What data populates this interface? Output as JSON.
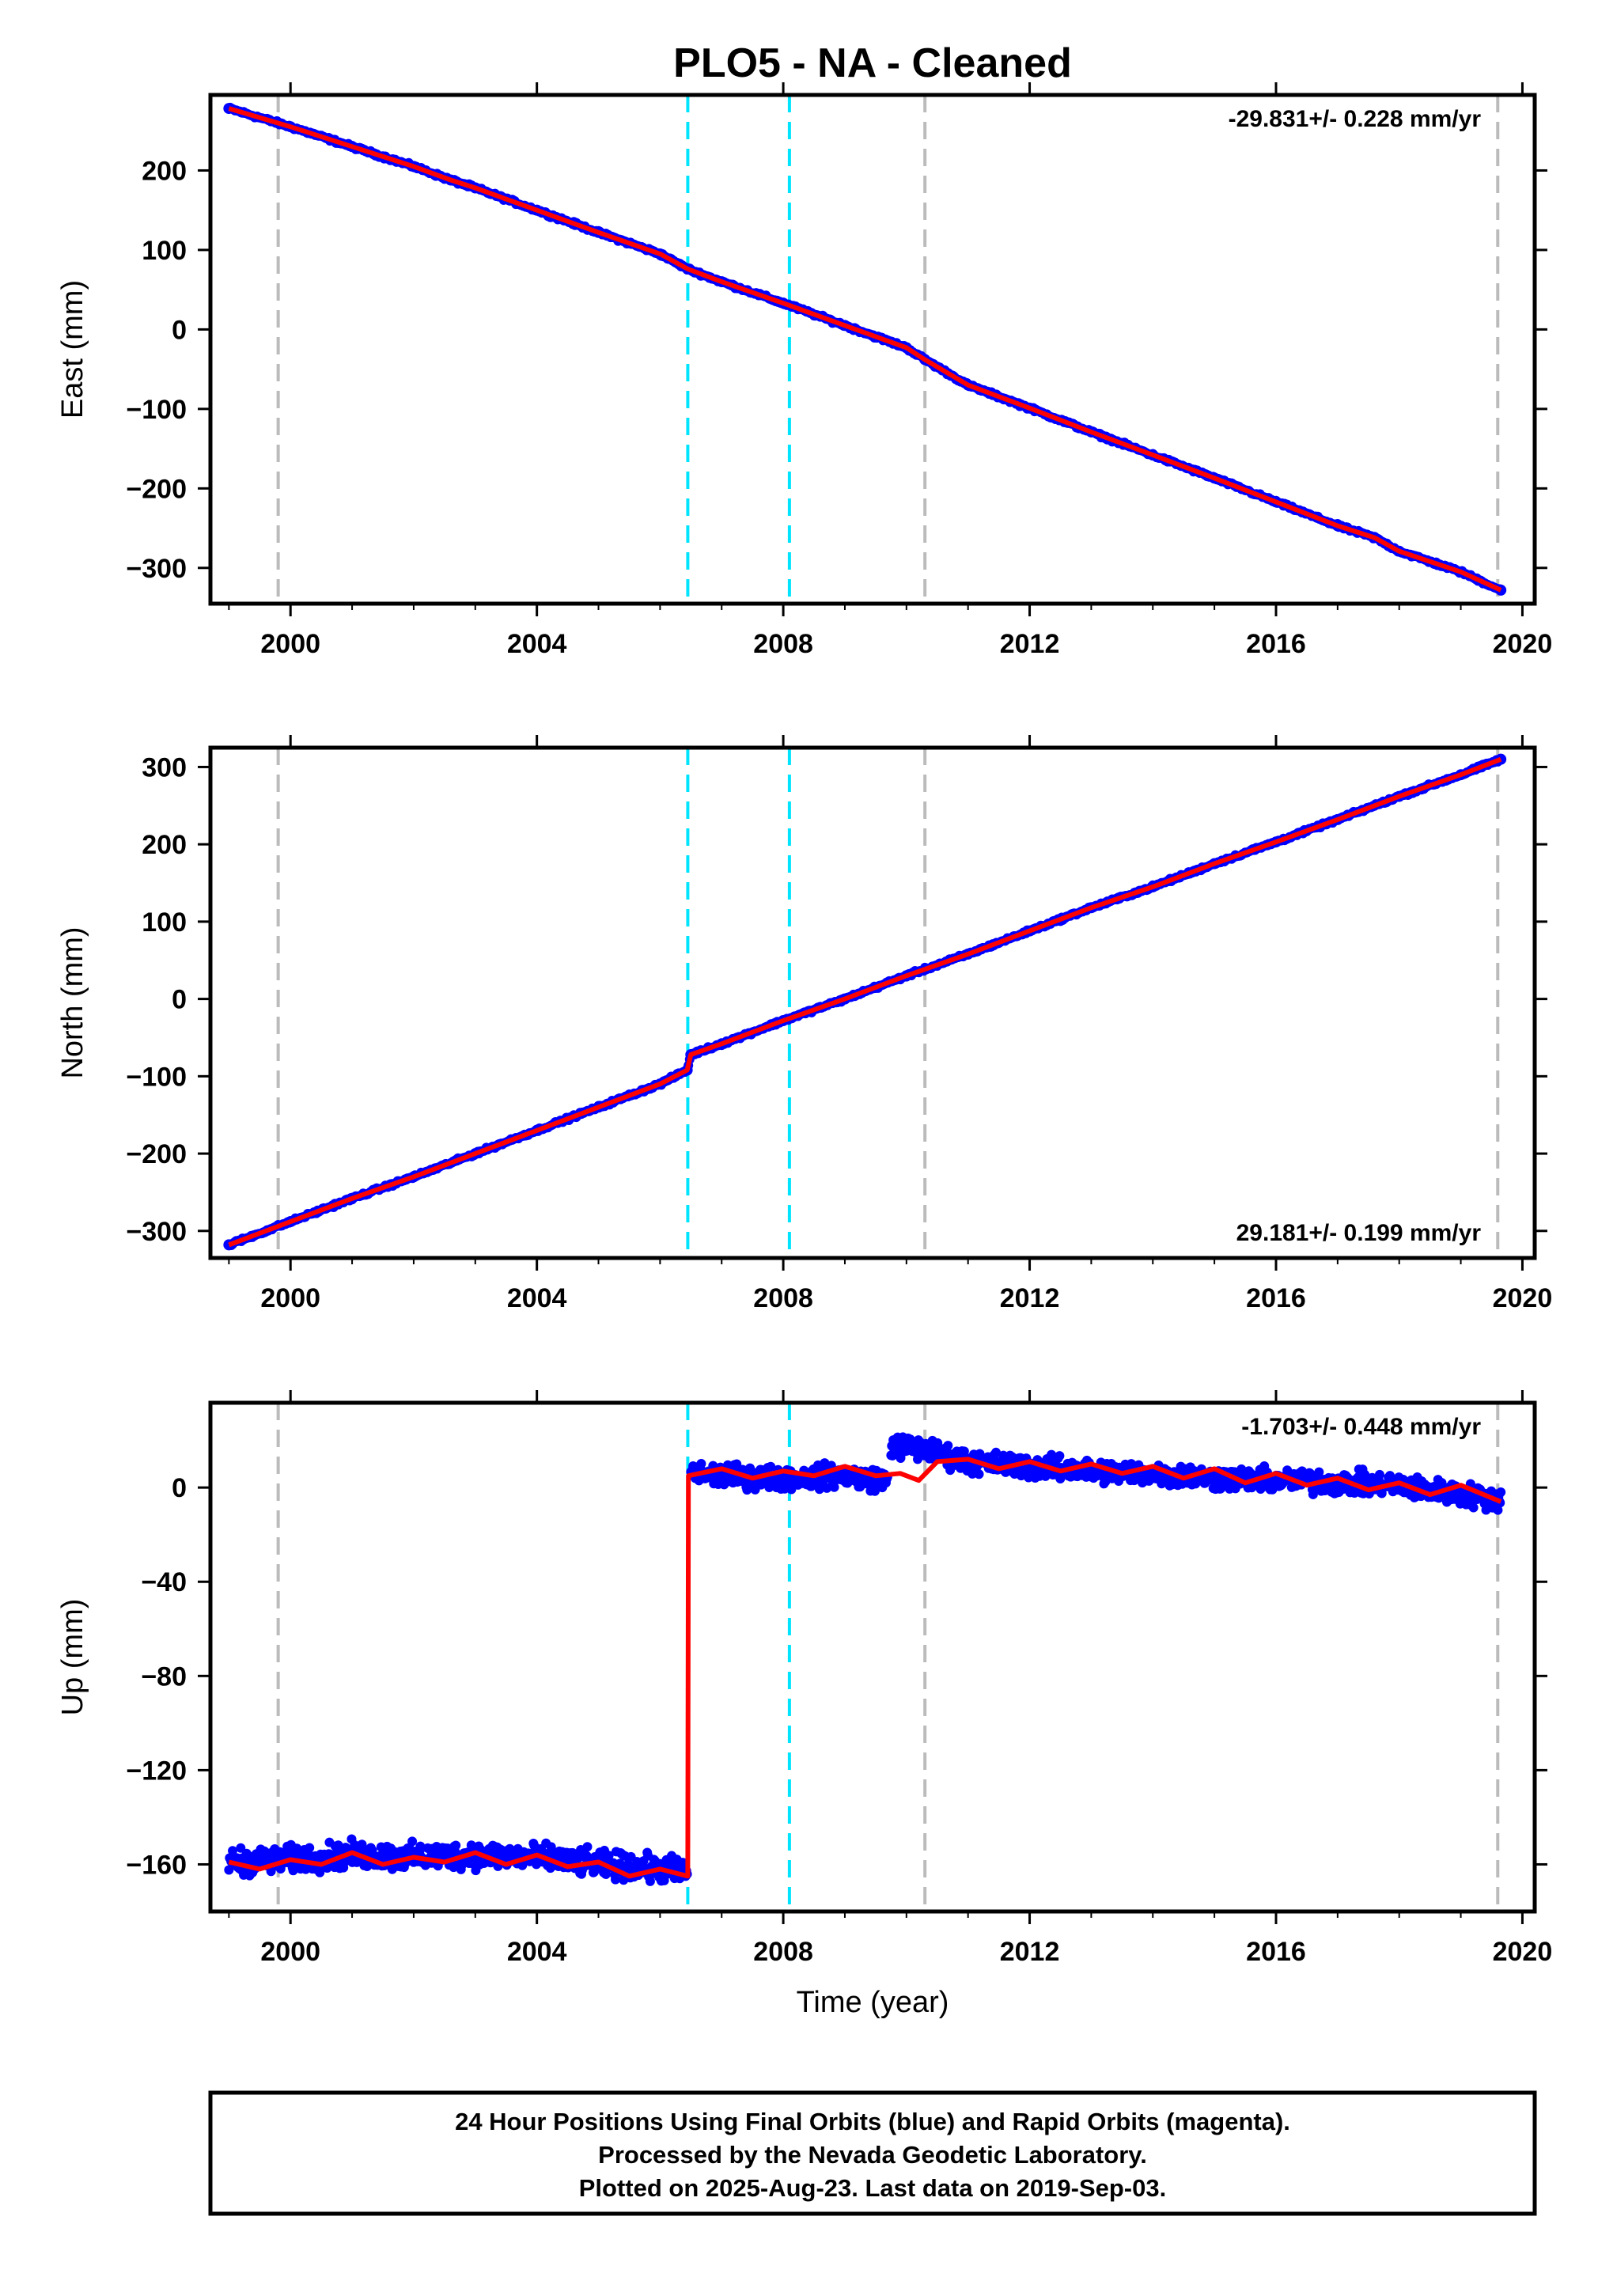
{
  "page": {
    "title": "PLO5  - NA - Cleaned"
  },
  "chart_data": [
    {
      "type": "scatter",
      "component": "East",
      "ylabel": "East (mm)",
      "xlabel": "",
      "xlim": [
        1998.7,
        2020.2
      ],
      "ylim": [
        -345,
        295
      ],
      "xticks": [
        2000,
        2004,
        2008,
        2012,
        2016,
        2020
      ],
      "yticks": [
        200,
        100,
        0,
        -100,
        -200,
        -300
      ],
      "ytick_labels": [
        "200",
        "100",
        "0",
        "−100",
        "−200",
        "−300"
      ],
      "rate_text": "-29.831+/- 0.228 mm/yr",
      "rate_position": "top-right",
      "series": [
        {
          "name": "",
          "color": "#0000ff",
          "style": "dots",
          "points": [
            [
              1999.0,
              278
            ],
            [
              2000.0,
              255
            ],
            [
              2001.0,
              230
            ],
            [
              2002.0,
              205
            ],
            [
              2002.6,
              188
            ],
            [
              2003.0,
              178
            ],
            [
              2004.0,
              150
            ],
            [
              2005.0,
              122
            ],
            [
              2006.0,
              95
            ],
            [
              2006.45,
              76
            ],
            [
              2007.0,
              60
            ],
            [
              2008.0,
              33
            ],
            [
              2009.0,
              5
            ],
            [
              2010.0,
              -23
            ],
            [
              2010.3,
              -38
            ],
            [
              2011.0,
              -70
            ],
            [
              2012.0,
              -99
            ],
            [
              2013.0,
              -129
            ],
            [
              2014.0,
              -158
            ],
            [
              2015.0,
              -187
            ],
            [
              2016.0,
              -217
            ],
            [
              2017.0,
              -247
            ],
            [
              2017.6,
              -262
            ],
            [
              2018.0,
              -279
            ],
            [
              2019.0,
              -305
            ],
            [
              2019.65,
              -328
            ]
          ]
        },
        {
          "name": "",
          "color": "#ff0000",
          "style": "line",
          "points": [
            [
              1999.0,
              278
            ],
            [
              2000.0,
              255
            ],
            [
              2001.0,
              230
            ],
            [
              2002.0,
              205
            ],
            [
              2002.6,
              188
            ],
            [
              2003.0,
              178
            ],
            [
              2004.0,
              150
            ],
            [
              2005.0,
              122
            ],
            [
              2006.0,
              95
            ],
            [
              2006.45,
              76
            ],
            [
              2007.0,
              60
            ],
            [
              2008.0,
              33
            ],
            [
              2009.0,
              5
            ],
            [
              2010.0,
              -23
            ],
            [
              2010.3,
              -38
            ],
            [
              2011.0,
              -70
            ],
            [
              2012.0,
              -99
            ],
            [
              2013.0,
              -129
            ],
            [
              2014.0,
              -158
            ],
            [
              2015.0,
              -187
            ],
            [
              2016.0,
              -217
            ],
            [
              2017.0,
              -247
            ],
            [
              2017.6,
              -262
            ],
            [
              2018.0,
              -279
            ],
            [
              2019.0,
              -305
            ],
            [
              2019.65,
              -328
            ]
          ]
        }
      ],
      "events": [
        {
          "x": 1999.8,
          "color": "#bbbbbb"
        },
        {
          "x": 2006.45,
          "color": "#00e5ff"
        },
        {
          "x": 2008.1,
          "color": "#00e5ff"
        },
        {
          "x": 2010.3,
          "color": "#bbbbbb"
        },
        {
          "x": 2019.6,
          "color": "#bbbbbb"
        }
      ]
    },
    {
      "type": "scatter",
      "component": "North",
      "ylabel": "North (mm)",
      "xlabel": "",
      "xlim": [
        1998.7,
        2020.2
      ],
      "ylim": [
        -335,
        325
      ],
      "xticks": [
        2000,
        2004,
        2008,
        2012,
        2016,
        2020
      ],
      "yticks": [
        300,
        200,
        100,
        0,
        -100,
        -200,
        -300
      ],
      "ytick_labels": [
        "300",
        "200",
        "100",
        "0",
        "−100",
        "−200",
        "−300"
      ],
      "rate_text": "29.181+/- 0.199 mm/yr",
      "rate_position": "bottom-right",
      "series": [
        {
          "name": "",
          "color": "#0000ff",
          "style": "dots",
          "points": [
            [
              1999.0,
              -318
            ],
            [
              2000.0,
              -288
            ],
            [
              2001.0,
              -258
            ],
            [
              2002.0,
              -230
            ],
            [
              2003.0,
              -200
            ],
            [
              2004.0,
              -170
            ],
            [
              2005.0,
              -140
            ],
            [
              2006.0,
              -110
            ],
            [
              2006.44,
              -92
            ],
            [
              2006.5,
              -72
            ],
            [
              2007.0,
              -58
            ],
            [
              2008.0,
              -28
            ],
            [
              2009.0,
              0
            ],
            [
              2010.0,
              30
            ],
            [
              2011.0,
              58
            ],
            [
              2012.0,
              88
            ],
            [
              2013.0,
              118
            ],
            [
              2014.0,
              145
            ],
            [
              2015.0,
              175
            ],
            [
              2016.0,
              203
            ],
            [
              2017.0,
              232
            ],
            [
              2018.0,
              262
            ],
            [
              2019.0,
              290
            ],
            [
              2019.65,
              310
            ]
          ]
        },
        {
          "name": "",
          "color": "#ff0000",
          "style": "line",
          "points": [
            [
              1999.0,
              -318
            ],
            [
              2000.0,
              -288
            ],
            [
              2001.0,
              -258
            ],
            [
              2002.0,
              -230
            ],
            [
              2003.0,
              -200
            ],
            [
              2004.0,
              -170
            ],
            [
              2005.0,
              -140
            ],
            [
              2006.0,
              -110
            ],
            [
              2006.44,
              -92
            ],
            [
              2006.5,
              -72
            ],
            [
              2007.0,
              -58
            ],
            [
              2008.0,
              -28
            ],
            [
              2009.0,
              0
            ],
            [
              2010.0,
              30
            ],
            [
              2011.0,
              58
            ],
            [
              2012.0,
              88
            ],
            [
              2013.0,
              118
            ],
            [
              2014.0,
              145
            ],
            [
              2015.0,
              175
            ],
            [
              2016.0,
              203
            ],
            [
              2017.0,
              232
            ],
            [
              2018.0,
              262
            ],
            [
              2019.0,
              290
            ],
            [
              2019.65,
              310
            ]
          ]
        }
      ],
      "events": [
        {
          "x": 1999.8,
          "color": "#bbbbbb"
        },
        {
          "x": 2006.45,
          "color": "#00e5ff"
        },
        {
          "x": 2008.1,
          "color": "#00e5ff"
        },
        {
          "x": 2010.3,
          "color": "#bbbbbb"
        },
        {
          "x": 2019.6,
          "color": "#bbbbbb"
        }
      ]
    },
    {
      "type": "scatter",
      "component": "Up",
      "ylabel": "Up (mm)",
      "xlabel": "Time (year)",
      "xlim": [
        1998.7,
        2020.2
      ],
      "ylim": [
        -180,
        36
      ],
      "xticks": [
        2000,
        2004,
        2008,
        2012,
        2016,
        2020
      ],
      "yticks": [
        0,
        -40,
        -80,
        -120,
        -160
      ],
      "ytick_labels": [
        "0",
        "−40",
        "−80",
        "−120",
        "−160"
      ],
      "rate_text": "-1.703+/- 0.448 mm/yr",
      "rate_position": "top-right",
      "series": [
        {
          "name": "",
          "color": "#0000ff",
          "style": "band",
          "segments": [
            {
              "points": [
                [
                  1999.0,
                  -159
                ],
                [
                  2000.0,
                  -158
                ],
                [
                  2001.0,
                  -156
                ],
                [
                  2002.0,
                  -157
                ],
                [
                  2003.0,
                  -156
                ],
                [
                  2004.0,
                  -157
                ],
                [
                  2005.0,
                  -160
                ],
                [
                  2006.0,
                  -162
                ],
                [
                  2006.45,
                  -163
                ]
              ],
              "spread": 8
            },
            {
              "points": [
                [
                  2006.5,
                  6
                ],
                [
                  2007.0,
                  5
                ],
                [
                  2008.0,
                  4
                ],
                [
                  2009.0,
                  5
                ],
                [
                  2009.7,
                  3
                ]
              ],
              "spread": 7
            },
            {
              "points": [
                [
                  2009.75,
                  18
                ],
                [
                  2010.3,
                  16
                ],
                [
                  2011.0,
                  11
                ],
                [
                  2012.0,
                  9
                ],
                [
                  2013.0,
                  7
                ],
                [
                  2014.0,
                  6
                ],
                [
                  2015.0,
                  4
                ],
                [
                  2016.0,
                  3
                ],
                [
                  2017.0,
                  2
                ],
                [
                  2018.0,
                  1
                ],
                [
                  2019.0,
                  -3
                ],
                [
                  2019.65,
                  -5
                ]
              ],
              "spread": 7
            }
          ]
        },
        {
          "name": "",
          "color": "#ff0000",
          "style": "line",
          "points": [
            [
              1999.0,
              -159
            ],
            [
              1999.5,
              -162
            ],
            [
              2000.0,
              -158
            ],
            [
              2000.5,
              -160
            ],
            [
              2001.0,
              -155
            ],
            [
              2001.5,
              -160
            ],
            [
              2002.0,
              -157
            ],
            [
              2002.5,
              -159
            ],
            [
              2003.0,
              -155
            ],
            [
              2003.5,
              -160
            ],
            [
              2004.0,
              -156
            ],
            [
              2004.5,
              -161
            ],
            [
              2005.0,
              -159
            ],
            [
              2005.5,
              -165
            ],
            [
              2006.0,
              -162
            ],
            [
              2006.45,
              -165
            ],
            [
              2006.46,
              5
            ],
            [
              2007.0,
              8
            ],
            [
              2007.5,
              4
            ],
            [
              2008.0,
              7
            ],
            [
              2008.5,
              5
            ],
            [
              2009.0,
              9
            ],
            [
              2009.5,
              5
            ],
            [
              2009.9,
              6
            ],
            [
              2010.2,
              3
            ],
            [
              2010.5,
              11
            ],
            [
              2011.0,
              12
            ],
            [
              2011.5,
              8
            ],
            [
              2012.0,
              11
            ],
            [
              2012.5,
              7
            ],
            [
              2013.0,
              10
            ],
            [
              2013.5,
              6
            ],
            [
              2014.0,
              9
            ],
            [
              2014.5,
              4
            ],
            [
              2015.0,
              8
            ],
            [
              2015.5,
              2
            ],
            [
              2016.0,
              6
            ],
            [
              2016.5,
              1
            ],
            [
              2017.0,
              4
            ],
            [
              2017.5,
              -1
            ],
            [
              2018.0,
              2
            ],
            [
              2018.5,
              -3
            ],
            [
              2019.0,
              1
            ],
            [
              2019.65,
              -6
            ]
          ]
        }
      ],
      "events": [
        {
          "x": 1999.8,
          "color": "#bbbbbb"
        },
        {
          "x": 2006.45,
          "color": "#00e5ff"
        },
        {
          "x": 2008.1,
          "color": "#00e5ff"
        },
        {
          "x": 2010.3,
          "color": "#bbbbbb"
        },
        {
          "x": 2019.6,
          "color": "#bbbbbb"
        }
      ]
    }
  ],
  "footer": {
    "line1": "24 Hour Positions Using Final Orbits (blue) and Rapid Orbits (magenta).",
    "line2": "Processed by the Nevada Geodetic Laboratory.",
    "line3": "Plotted on 2025-Aug-23. Last data on 2019-Sep-03."
  }
}
